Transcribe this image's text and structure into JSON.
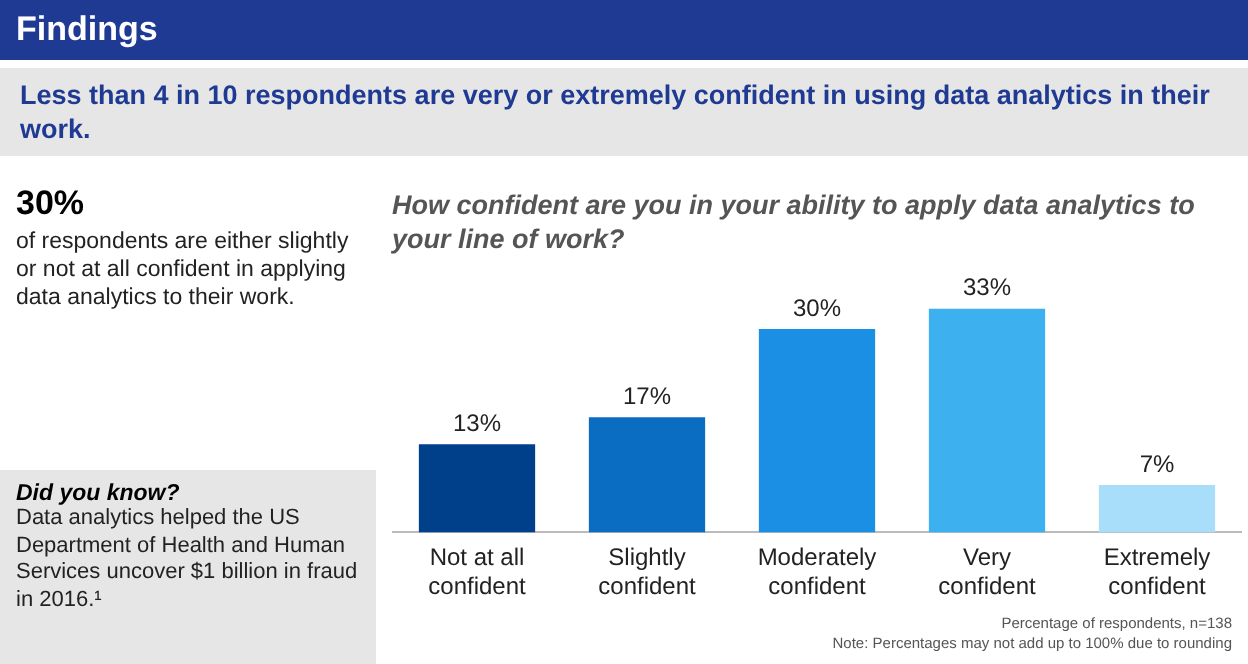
{
  "chart_data": {
    "type": "bar",
    "title": "How confident are you in your ability to apply data analytics to your line of work?",
    "categories": [
      "Not at all confident",
      "Slightly confident",
      "Moderately confident",
      "Very confident",
      "Extremely confident"
    ],
    "values": [
      13,
      17,
      30,
      33,
      7
    ],
    "value_labels": [
      "13%",
      "17%",
      "30%",
      "33%",
      "7%"
    ],
    "colors": [
      "#003f8a",
      "#0a6dc2",
      "#1a8fe3",
      "#3db0f0",
      "#a9defa"
    ],
    "grid": false,
    "legend": false,
    "annotations": [
      "Findings",
      "Less than 4 in 10 respondents are very or extremely confident in using data analytics in their work.",
      "30%",
      "of respondents are either slightly or not at all confident in applying data analytics to their work.",
      "Did you know?",
      "Data analytics helped the US Department of Health and Human Services uncover $1 billion in fraud in 2016.¹",
      "Percentage of respondents, n=138",
      "Note: Percentages may not add up to 100% due to rounding"
    ]
  }
}
